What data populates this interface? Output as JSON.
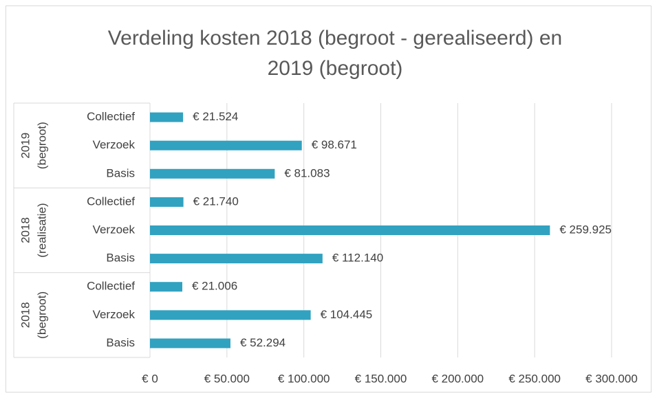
{
  "chart_data": {
    "type": "bar",
    "title": [
      "Verdeling kosten 2018 (begroot - gerealiseerd) en",
      "2019 (begroot)"
    ],
    "color": "#31a2c0",
    "grid": true,
    "xlim": [
      0,
      300000
    ],
    "xticks": [
      {
        "value": 0,
        "label": "€ 0"
      },
      {
        "value": 50000,
        "label": "€ 50.000"
      },
      {
        "value": 100000,
        "label": "€ 100.000"
      },
      {
        "value": 150000,
        "label": "€ 150.000"
      },
      {
        "value": 200000,
        "label": "€ 200.000"
      },
      {
        "value": 250000,
        "label": "€ 250.000"
      },
      {
        "value": 300000,
        "label": "€ 300.000"
      }
    ],
    "groups": [
      {
        "label": [
          "2019",
          "(begroot)"
        ],
        "categories": [
          "Collectief",
          "Verzoek",
          "Basis"
        ],
        "values": [
          21524,
          98671,
          81083
        ],
        "value_labels": [
          "€ 21.524",
          "€ 98.671",
          "€ 81.083"
        ]
      },
      {
        "label": [
          "2018",
          "(realisatie)"
        ],
        "categories": [
          "Collectief",
          "Verzoek",
          "Basis"
        ],
        "values": [
          21740,
          259925,
          112140
        ],
        "value_labels": [
          "€ 21.740",
          "€ 259.925",
          "€ 112.140"
        ]
      },
      {
        "label": [
          "2018",
          "(begroot)"
        ],
        "categories": [
          "Collectief",
          "Verzoek",
          "Basis"
        ],
        "values": [
          21006,
          104445,
          52294
        ],
        "value_labels": [
          "€ 21.006",
          "€ 104.445",
          "€ 52.294"
        ]
      }
    ]
  }
}
